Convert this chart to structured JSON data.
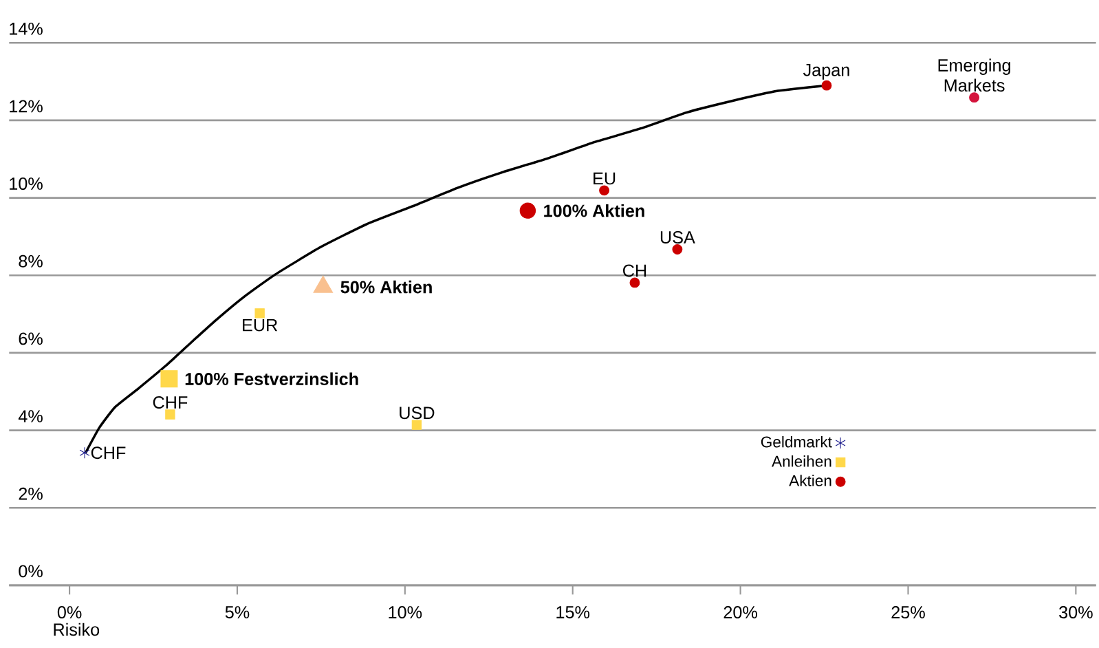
{
  "chart_data": {
    "type": "scatter",
    "xlabel": "Risiko",
    "xlim": [
      -1.8,
      30.6
    ],
    "ylim": [
      0,
      14
    ],
    "xticks": [
      {
        "value": 0,
        "label": "0%"
      },
      {
        "value": 5,
        "label": "5%"
      },
      {
        "value": 10,
        "label": "10%"
      },
      {
        "value": 15,
        "label": "15%"
      },
      {
        "value": 20,
        "label": "20%"
      },
      {
        "value": 25,
        "label": "25%"
      },
      {
        "value": 30,
        "label": "30%"
      }
    ],
    "yticks": [
      {
        "value": 0,
        "label": "0%"
      },
      {
        "value": 2,
        "label": "2%"
      },
      {
        "value": 4,
        "label": "4%"
      },
      {
        "value": 6,
        "label": "6%"
      },
      {
        "value": 8,
        "label": "8%"
      },
      {
        "value": 10,
        "label": "10%"
      },
      {
        "value": 12,
        "label": "12%"
      },
      {
        "value": 14,
        "label": "14%"
      }
    ],
    "grid": "y",
    "legend": "bottom right",
    "series": [
      {
        "name": "Geldmarkt",
        "type": "scatter",
        "marker": "cross",
        "color": "#1c1c8c",
        "x": [
          0.45
        ],
        "values": [
          3.42
        ]
      },
      {
        "name": "Anleihen",
        "type": "scatter",
        "marker": "square",
        "color": "#ffd84a",
        "x": [
          3.0,
          5.67,
          10.35
        ],
        "values": [
          4.41,
          7.02,
          4.14
        ]
      },
      {
        "name": "Aktien",
        "type": "scatter",
        "marker": "circle",
        "color": "#cc0000",
        "colors": [
          "#cc0000",
          "#cc0000",
          "#cc0000",
          "#cc0000",
          "#d4143c"
        ],
        "x": [
          15.94,
          18.12,
          16.85,
          22.57,
          26.97
        ],
        "values": [
          10.19,
          8.67,
          7.81,
          12.9,
          12.59
        ]
      },
      {
        "type": "line",
        "color": "#000000",
        "marker": "none",
        "line_style": "solid",
        "x": [
          0.48,
          0.89,
          1.36,
          2.04,
          2.86,
          3.68,
          4.36,
          5.18,
          6.13,
          7.49,
          8.86,
          10.22,
          11.58,
          12.94,
          14.3,
          15.66,
          17.03,
          18.39,
          19.75,
          21.12,
          22.57
        ],
        "values": [
          3.42,
          4.07,
          4.6,
          5.07,
          5.66,
          6.31,
          6.84,
          7.43,
          8.02,
          8.73,
          9.32,
          9.78,
          10.26,
          10.67,
          11.03,
          11.44,
          11.79,
          12.2,
          12.5,
          12.76,
          12.9
        ]
      },
      {
        "name": "100% Festverzinslich",
        "type": "scatter",
        "marker": "square",
        "color": "#ffd84a",
        "x": [
          2.97
        ],
        "values": [
          5.33
        ]
      },
      {
        "name": "50% Aktien",
        "type": "scatter",
        "marker": "triangle",
        "color": "#f9c08f",
        "x": [
          7.56
        ],
        "values": [
          7.7
        ]
      },
      {
        "name": "100% Aktien",
        "type": "scatter",
        "marker": "circle",
        "color": "#cc0000",
        "x": [
          13.66
        ],
        "values": [
          9.67
        ]
      }
    ],
    "annotations": [
      {
        "text": "CHF",
        "x": 0.45,
        "y": 3.42
      },
      {
        "text": "CHF",
        "x": 3.0,
        "y": 4.41
      },
      {
        "text": "EUR",
        "x": 5.67,
        "y": 7.02
      },
      {
        "text": "USD",
        "x": 10.35,
        "y": 4.14
      },
      {
        "text": "EU",
        "x": 15.94,
        "y": 10.19
      },
      {
        "text": "USA",
        "x": 18.12,
        "y": 8.67
      },
      {
        "text": "CH",
        "x": 16.85,
        "y": 7.81
      },
      {
        "text": "Japan",
        "x": 22.57,
        "y": 12.9
      },
      {
        "text": "Emerging Markets",
        "x": 26.97,
        "y": 12.59
      }
    ]
  }
}
